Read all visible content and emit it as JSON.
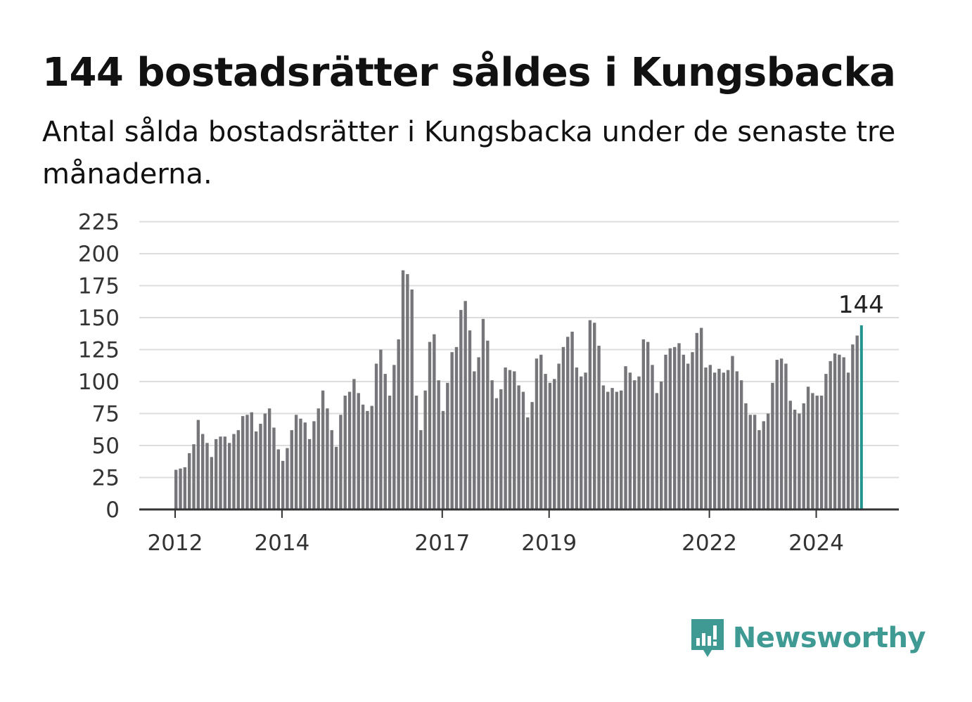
{
  "title": "144 bostadsrätter såldes i Kungsbacka",
  "subtitle": "Antal sålda bostadsrätter i Kungsbacka under de senaste tre månaderna.",
  "brand": {
    "name": "Newsworthy",
    "icon": "newsworthy-logo-icon",
    "color": "#3f9a94"
  },
  "colors": {
    "bar": "#75757a",
    "highlight": "#22958f",
    "grid": "#dddddd",
    "axis": "#333333"
  },
  "chart_data": {
    "type": "bar",
    "title": "144 bostadsrätter såldes i Kungsbacka",
    "ylim": [
      0,
      225
    ],
    "yticks": [
      0,
      25,
      50,
      75,
      100,
      125,
      150,
      175,
      200,
      225
    ],
    "xticks": [
      "2012",
      "2014",
      "2017",
      "2019",
      "2022",
      "2024"
    ],
    "grid": true,
    "highlight_label": "144",
    "values": [
      31,
      32,
      33,
      44,
      51,
      70,
      59,
      52,
      41,
      55,
      57,
      57,
      52,
      59,
      62,
      73,
      74,
      76,
      61,
      67,
      75,
      79,
      64,
      47,
      38,
      48,
      62,
      74,
      71,
      68,
      55,
      69,
      79,
      93,
      79,
      62,
      49,
      74,
      89,
      92,
      102,
      91,
      82,
      77,
      81,
      114,
      125,
      106,
      89,
      113,
      133,
      187,
      184,
      172,
      89,
      62,
      93,
      131,
      137,
      101,
      77,
      99,
      123,
      127,
      156,
      163,
      140,
      108,
      119,
      149,
      132,
      101,
      87,
      94,
      111,
      109,
      108,
      97,
      92,
      72,
      84,
      118,
      121,
      106,
      99,
      102,
      114,
      127,
      135,
      139,
      111,
      104,
      107,
      148,
      146,
      128,
      97,
      92,
      95,
      92,
      93,
      112,
      107,
      101,
      104,
      133,
      131,
      113,
      91,
      100,
      121,
      126,
      127,
      130,
      121,
      114,
      123,
      138,
      142,
      111,
      113,
      107,
      110,
      107,
      109,
      120,
      108,
      101,
      83,
      74,
      74,
      62,
      69,
      75,
      99,
      117,
      118,
      114,
      85,
      78,
      75,
      83,
      96,
      91,
      89,
      89,
      106,
      116,
      122,
      121,
      119,
      107,
      129,
      136,
      144
    ]
  }
}
